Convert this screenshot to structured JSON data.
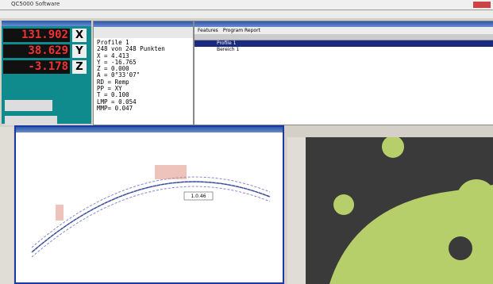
{
  "window": {
    "title": "QC5000 Software"
  },
  "dro": {
    "rows": [
      {
        "value": "131.902",
        "axis": "X"
      },
      {
        "value": "38.629",
        "axis": "Y"
      },
      {
        "value": "-3.178",
        "axis": "Z"
      }
    ]
  },
  "feature_info": {
    "lines": [
      "Profile 1",
      "248 von 248 Punkten",
      "X = 4.413",
      "Y = -16.765",
      "Z = 0.000",
      "A = 0°33'07\"",
      "RD = Remp",
      "PP = XY",
      "T = 0.100",
      "LMP = 0.054",
      "MMP= 0.047"
    ]
  },
  "feature_list": {
    "tabs": [
      "Features",
      "Program Report"
    ],
    "rows": [
      "Profile 1",
      "Bereich 1"
    ]
  },
  "profile_view": {
    "callout": "1.0.46"
  }
}
